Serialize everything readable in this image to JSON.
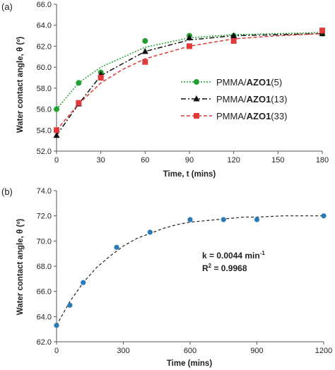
{
  "chart_data": [
    {
      "panel_label": "(a)",
      "type": "line",
      "xlabel": "Time, t (mins)",
      "ylabel": "Water contact angle, θ (º)",
      "xlim": [
        0,
        180
      ],
      "ylim": [
        52.0,
        66.0
      ],
      "x_ticks": [
        "0",
        "30",
        "60",
        "90",
        "120",
        "150",
        "180"
      ],
      "y_ticks": [
        "52.0",
        "54.0",
        "56.0",
        "58.0",
        "60.0",
        "62.0",
        "64.0",
        "66.0"
      ],
      "grid": false,
      "legend_position": "right",
      "series": [
        {
          "name": "PMMA/AZO1(5)",
          "name_prefix": "PMMA/",
          "name_bold": "AZO1",
          "name_suffix": "(5)",
          "color": "#22a032",
          "marker": "circle",
          "line": "dotted",
          "x": [
            0,
            15,
            30,
            60,
            90,
            120,
            180
          ],
          "y": [
            56.0,
            58.5,
            59.5,
            62.5,
            63.0,
            63.0,
            63.2
          ],
          "fit_x": [
            0,
            15,
            30,
            60,
            90,
            120,
            180
          ],
          "fit_y": [
            56.0,
            58.5,
            60.0,
            61.9,
            62.8,
            63.1,
            63.3
          ]
        },
        {
          "name": "PMMA/AZO1(13)",
          "name_prefix": "PMMA/",
          "name_bold": "AZO1",
          "name_suffix": "(13)",
          "color": "#111111",
          "marker": "triangle",
          "line": "dashdot",
          "x": [
            0,
            15,
            30,
            60,
            90,
            120,
            180
          ],
          "y": [
            53.5,
            56.5,
            59.3,
            61.5,
            62.8,
            63.0,
            63.2
          ],
          "fit_x": [
            0,
            15,
            30,
            60,
            90,
            120,
            180
          ],
          "fit_y": [
            53.5,
            56.5,
            59.2,
            61.5,
            62.6,
            63.0,
            63.2
          ]
        },
        {
          "name": "PMMA/AZO1(33)",
          "name_prefix": "PMMA/",
          "name_bold": "AZO1",
          "name_suffix": "(33)",
          "color": "#e03a3a",
          "marker": "square",
          "line": "dashed",
          "x": [
            0,
            15,
            30,
            60,
            90,
            120,
            180
          ],
          "y": [
            54.0,
            56.6,
            59.0,
            60.5,
            62.0,
            62.5,
            63.5
          ],
          "fit_x": [
            0,
            15,
            30,
            45,
            60,
            90,
            120,
            150,
            180
          ],
          "fit_y": [
            54.0,
            56.5,
            58.5,
            59.8,
            60.8,
            62.0,
            62.7,
            63.0,
            63.2
          ]
        }
      ]
    },
    {
      "panel_label": "(b)",
      "type": "scatter",
      "xlabel": "Time (mins)",
      "ylabel": "Water contact angle, θ (º)",
      "xlim": [
        0,
        1200
      ],
      "ylim": [
        62.0,
        74.0
      ],
      "x_ticks": [
        "0",
        "300",
        "600",
        "900",
        "1200"
      ],
      "y_ticks": [
        "62.0",
        "64.0",
        "66.0",
        "68.0",
        "70.0",
        "72.0",
        "74.0"
      ],
      "grid": false,
      "annotations": [
        "k = 0.0044 min-1",
        "R2 = 0.9968"
      ],
      "annotation_k": "k = 0.0044 min",
      "annotation_k_sup": "-1",
      "annotation_r": "R",
      "annotation_r_sup": "2",
      "annotation_r_rest": " = 0.9968",
      "series": [
        {
          "color": "#2a7ab8",
          "marker": "circle",
          "fit_line": "dashed",
          "x": [
            0,
            60,
            120,
            270,
            420,
            600,
            750,
            900,
            1200
          ],
          "y": [
            63.3,
            64.9,
            66.7,
            69.5,
            70.7,
            71.7,
            71.7,
            71.7,
            72.0
          ],
          "fit_x": [
            0,
            60,
            120,
            180,
            240,
            300,
            360,
            420,
            480,
            540,
            600,
            660,
            720,
            780,
            840,
            900,
            960,
            1020,
            1080,
            1140,
            1200
          ],
          "fit_y": [
            63.3,
            65.2,
            66.7,
            67.9,
            68.8,
            69.6,
            70.2,
            70.6,
            71.0,
            71.3,
            71.5,
            71.6,
            71.7,
            71.8,
            71.9,
            71.9,
            71.95,
            72.0,
            72.0,
            72.0,
            72.0
          ]
        }
      ]
    }
  ]
}
